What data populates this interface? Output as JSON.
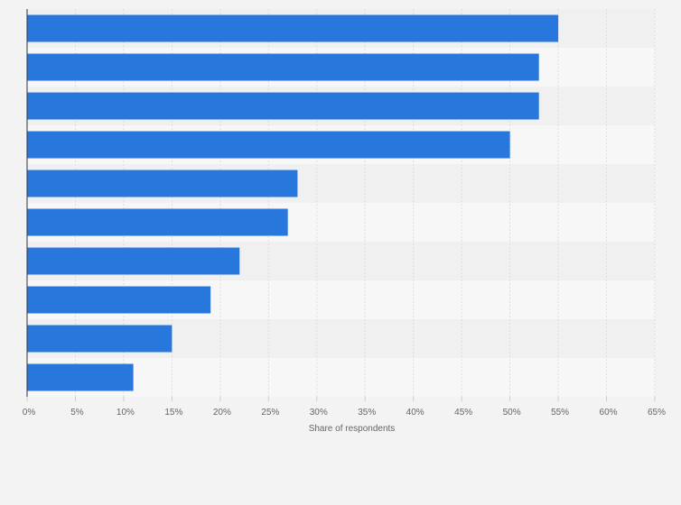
{
  "colors": {
    "bar": "#2777dd",
    "band_light": "#f7f7f7",
    "band_dark": "#f0f0f0",
    "gridline": "#dddddd",
    "axis": "#333333",
    "page_background": "#f3f3f3"
  },
  "chart_data": {
    "type": "bar",
    "orientation": "horizontal",
    "categories": [
      "",
      "",
      "",
      "",
      "",
      "",
      "",
      "",
      "",
      ""
    ],
    "values": [
      55,
      53,
      53,
      50,
      28,
      27,
      22,
      19,
      15,
      11
    ],
    "unit": "%",
    "xlabel": "Share of respondents",
    "ylabel": "",
    "xlim": [
      0,
      65
    ],
    "x_ticks": [
      0,
      5,
      10,
      15,
      20,
      25,
      30,
      35,
      40,
      45,
      50,
      55,
      60,
      65
    ],
    "x_tick_labels": [
      "0%",
      "5%",
      "10%",
      "15%",
      "20%",
      "25%",
      "30%",
      "35%",
      "40%",
      "45%",
      "50%",
      "55%",
      "60%",
      "65%"
    ],
    "grid": true,
    "legend": "none"
  }
}
